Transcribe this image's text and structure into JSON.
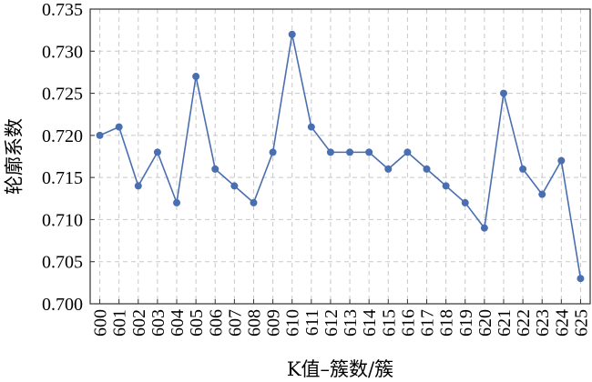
{
  "chart_data": {
    "type": "line",
    "xlabel": "K值–簇数/簇",
    "ylabel": "轮廓系数",
    "ylim": [
      0.7,
      0.735
    ],
    "yticks": [
      "0.700",
      "0.705",
      "0.710",
      "0.715",
      "0.720",
      "0.725",
      "0.730",
      "0.735"
    ],
    "yticks_values": [
      0.7,
      0.705,
      0.71,
      0.715,
      0.72,
      0.725,
      0.73,
      0.735
    ],
    "x": [
      "600",
      "601",
      "602",
      "603",
      "604",
      "605",
      "606",
      "607",
      "608",
      "609",
      "610",
      "611",
      "612",
      "613",
      "614",
      "615",
      "616",
      "617",
      "618",
      "619",
      "620",
      "621",
      "622",
      "623",
      "624",
      "625"
    ],
    "series": [
      {
        "values": [
          0.72,
          0.721,
          0.714,
          0.718,
          0.712,
          0.727,
          0.716,
          0.714,
          0.712,
          0.718,
          0.732,
          0.721,
          0.718,
          0.718,
          0.718,
          0.716,
          0.718,
          0.716,
          0.714,
          0.712,
          0.709,
          0.725,
          0.716,
          0.713,
          0.717,
          0.703
        ],
        "color": "#4a6fb0"
      }
    ],
    "grid": true,
    "grid_style": "dashed"
  }
}
